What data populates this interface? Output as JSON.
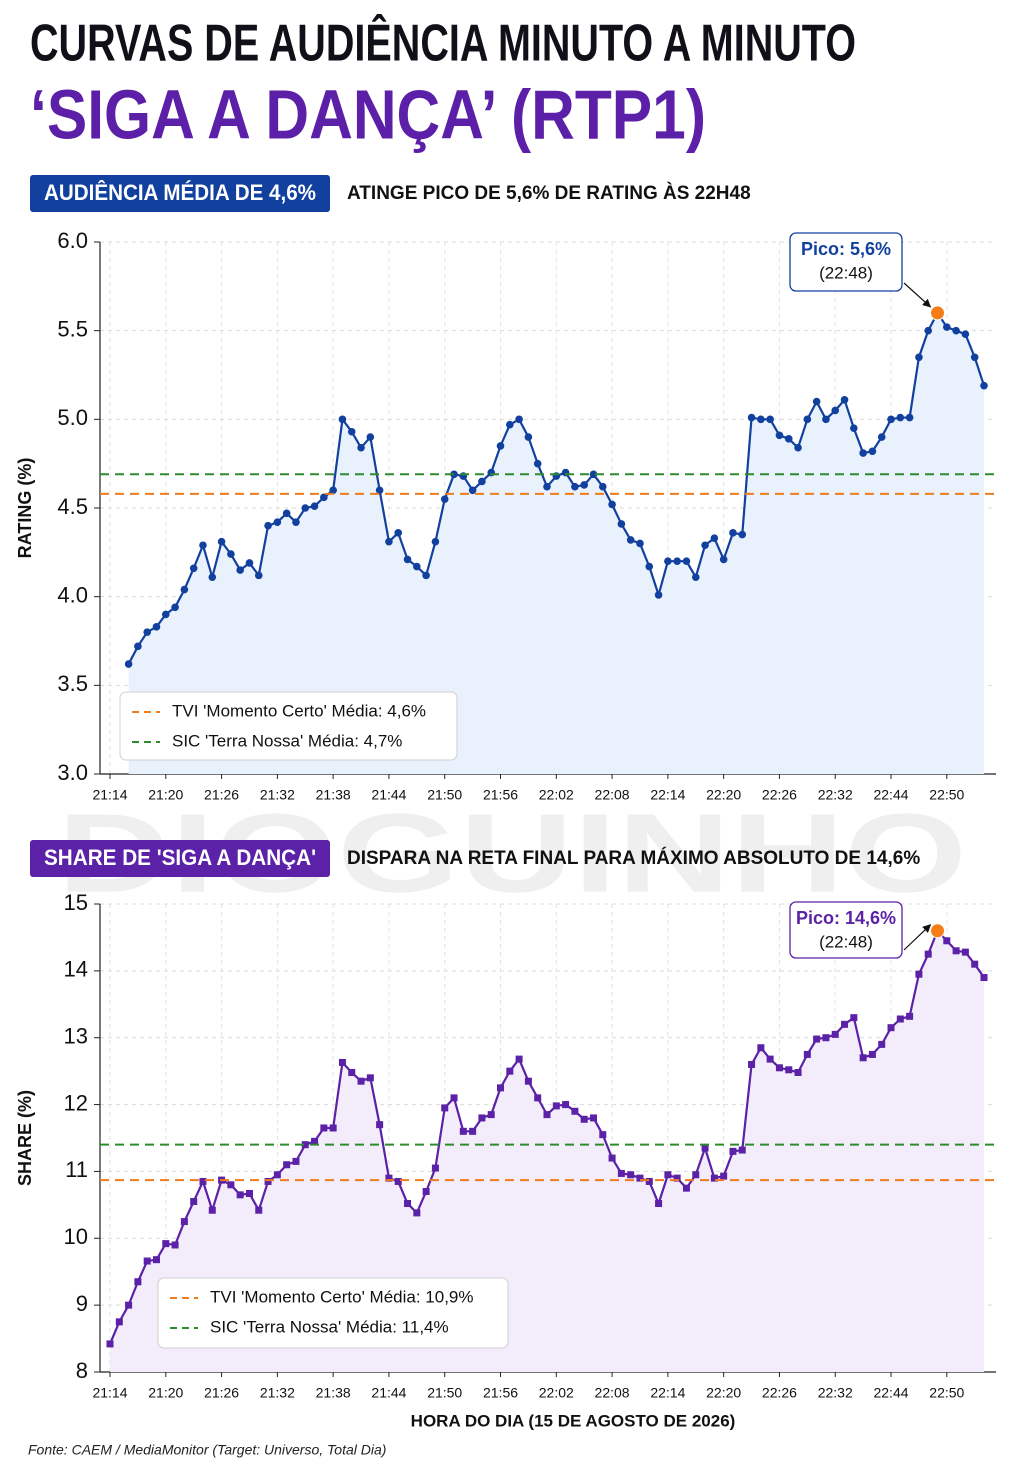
{
  "header": {
    "title": "CURVAS DE AUDIÊNCIA MINUTO A MINUTO",
    "subtitle": "‘SIGA A DANÇA’ (RTP1)"
  },
  "watermark": "DIOGUINHO",
  "source": "Fonte: CAEM / MediaMonitor (Target: Universo, Total Dia)",
  "chart_data": [
    {
      "type": "line",
      "badge": "AUDIÊNCIA MÉDIA DE 4,6%",
      "subtitle": "ATINGE PICO DE 5,6% DE RATING ÀS 22H48",
      "ylabel": "RATING (%)",
      "categories": [
        "21:14",
        null,
        null,
        null,
        null,
        null,
        "21:20",
        null,
        null,
        null,
        null,
        null,
        "21:26",
        null,
        null,
        null,
        null,
        null,
        "21:32",
        null,
        null,
        null,
        null,
        null,
        "21:38",
        null,
        null,
        null,
        null,
        null,
        "21:44",
        null,
        null,
        null,
        null,
        null,
        "21:50",
        null,
        null,
        null,
        null,
        null,
        "21:56",
        null,
        null,
        null,
        null,
        null,
        "22:02",
        null,
        null,
        null,
        null,
        null,
        "22:08",
        null,
        null,
        null,
        null,
        null,
        "22:14",
        null,
        null,
        null,
        null,
        null,
        "22:20",
        null,
        null,
        null,
        null,
        null,
        "22:26",
        null,
        null,
        null,
        null,
        null,
        "22:32",
        null,
        null,
        null,
        null,
        null,
        "22:44",
        null,
        null,
        null,
        null,
        null,
        "22:50",
        null,
        null,
        null,
        null
      ],
      "series": [
        {
          "color": "#12409f",
          "marker": "circle",
          "values": [
            null,
            null,
            3.62,
            3.72,
            3.8,
            3.83,
            3.9,
            3.94,
            4.04,
            4.16,
            4.29,
            4.11,
            4.31,
            4.24,
            4.15,
            4.19,
            4.12,
            4.4,
            4.42,
            4.47,
            4.42,
            4.5,
            4.51,
            4.56,
            4.6,
            5.0,
            4.93,
            4.84,
            4.9,
            4.6,
            4.31,
            4.36,
            4.21,
            4.17,
            4.12,
            4.31,
            4.55,
            4.69,
            4.68,
            4.6,
            4.65,
            4.7,
            4.85,
            4.97,
            5.0,
            4.9,
            4.75,
            4.62,
            4.68,
            4.7,
            4.62,
            4.63,
            4.69,
            4.62,
            4.52,
            4.41,
            4.32,
            4.3,
            4.17,
            4.01,
            4.2,
            4.2,
            4.2,
            4.11,
            4.29,
            4.33,
            4.21,
            4.36,
            4.35,
            5.01,
            5.0,
            5.0,
            4.91,
            4.89,
            4.84,
            5.0,
            5.1,
            5.0,
            5.05,
            5.11,
            4.95,
            4.81,
            4.82,
            4.9,
            5.0,
            5.01,
            5.01,
            5.35,
            5.5,
            5.6,
            5.52,
            5.5,
            5.48,
            5.35,
            5.19
          ]
        }
      ],
      "reference_lines": [
        {
          "name": "TVI 'Momento Certo' Média: 4,6%",
          "value": 4.58,
          "color": "#f07b1d"
        },
        {
          "name": "SIC 'Terra Nossa' Média: 4,7%",
          "value": 4.69,
          "color": "#2e8b2e"
        }
      ],
      "annotation": {
        "label": "Pico: 5,6%",
        "time": "(22:48)"
      },
      "ylim": [
        3,
        6
      ],
      "yticks": [
        {
          "value": 3,
          "label": "3.0"
        },
        3.5,
        {
          "value": 4,
          "label": "4.0"
        },
        4.5,
        {
          "value": 5,
          "label": "5.0"
        },
        5.5,
        {
          "value": 6,
          "label": "6.0"
        }
      ],
      "grid": true
    },
    {
      "type": "line",
      "badge": "SHARE DE 'SIGA A DANÇA'",
      "subtitle": "DISPARA NA RETA FINAL PARA MÁXIMO ABSOLUTO DE 14,6%",
      "ylabel": "SHARE (%)",
      "xlabel": "HORA DO DIA (15 DE AGOSTO DE 2026)",
      "categories": [
        "21:14",
        null,
        null,
        null,
        null,
        null,
        "21:20",
        null,
        null,
        null,
        null,
        null,
        "21:26",
        null,
        null,
        null,
        null,
        null,
        "21:32",
        null,
        null,
        null,
        null,
        null,
        "21:38",
        null,
        null,
        null,
        null,
        null,
        "21:44",
        null,
        null,
        null,
        null,
        null,
        "21:50",
        null,
        null,
        null,
        null,
        null,
        "21:56",
        null,
        null,
        null,
        null,
        null,
        "22:02",
        null,
        null,
        null,
        null,
        null,
        "22:08",
        null,
        null,
        null,
        null,
        null,
        "22:14",
        null,
        null,
        null,
        null,
        null,
        "22:20",
        null,
        null,
        null,
        null,
        null,
        "22:26",
        null,
        null,
        null,
        null,
        null,
        "22:32",
        null,
        null,
        null,
        null,
        null,
        "22:44",
        null,
        null,
        null,
        null,
        null,
        "22:50",
        null,
        null,
        null,
        null
      ],
      "series": [
        {
          "color": "#5b21a6",
          "marker": "square",
          "values": [
            8.42,
            8.75,
            9.0,
            9.35,
            9.66,
            9.68,
            9.92,
            9.9,
            10.25,
            10.55,
            10.85,
            10.42,
            10.87,
            10.8,
            10.65,
            10.67,
            10.42,
            10.85,
            10.95,
            11.1,
            11.15,
            11.4,
            11.45,
            11.65,
            11.65,
            12.63,
            12.48,
            12.35,
            12.4,
            11.7,
            10.9,
            10.85,
            10.52,
            10.38,
            10.7,
            11.05,
            11.95,
            12.1,
            11.6,
            11.6,
            11.8,
            11.85,
            12.25,
            12.5,
            12.68,
            12.35,
            12.1,
            11.85,
            11.98,
            12.0,
            11.9,
            11.78,
            11.8,
            11.55,
            11.2,
            10.97,
            10.95,
            10.9,
            10.85,
            10.52,
            10.95,
            10.9,
            10.75,
            10.95,
            11.35,
            10.9,
            10.93,
            11.3,
            11.32,
            12.6,
            12.85,
            12.68,
            12.55,
            12.52,
            12.48,
            12.75,
            12.98,
            13.0,
            13.05,
            13.2,
            13.3,
            12.7,
            12.75,
            12.9,
            13.15,
            13.28,
            13.32,
            13.95,
            14.25,
            14.6,
            14.45,
            14.3,
            14.28,
            14.1,
            13.9
          ]
        }
      ],
      "reference_lines": [
        {
          "name": "TVI 'Momento Certo' Média: 10,9%",
          "value": 10.87,
          "color": "#f07b1d"
        },
        {
          "name": "SIC 'Terra Nossa' Média: 11,4%",
          "value": 11.4,
          "color": "#2e8b2e"
        }
      ],
      "annotation": {
        "label": "Pico: 14,6%",
        "time": "(22:48)"
      },
      "ylim": [
        8,
        15
      ],
      "yticks": [
        8,
        9,
        10,
        11,
        12,
        13,
        14,
        15
      ],
      "grid": true
    }
  ]
}
